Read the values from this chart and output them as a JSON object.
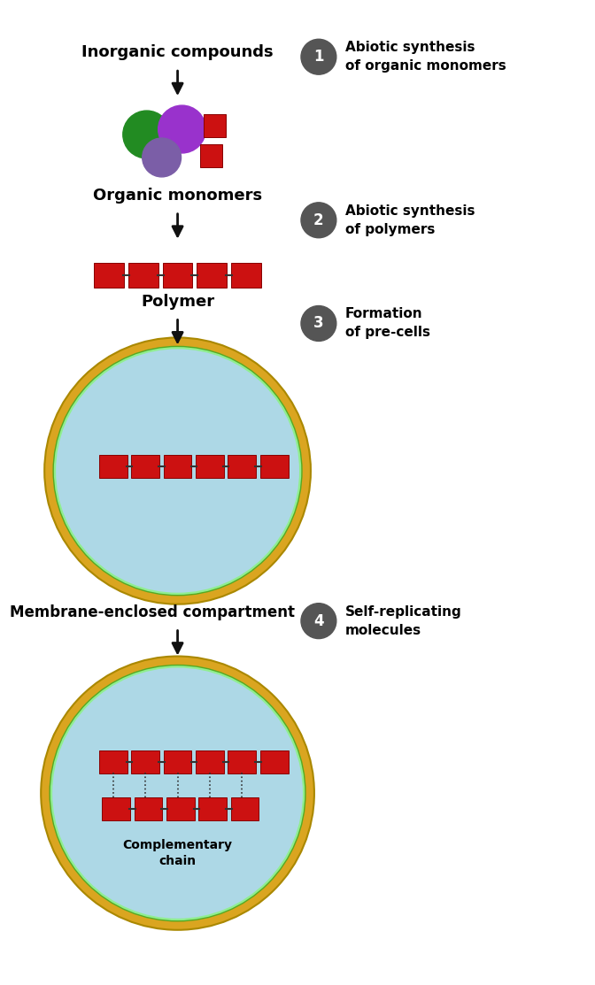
{
  "bg_color": "#ffffff",
  "text_color": "#000000",
  "step1_label": "Inorganic compounds",
  "step1_sub": "Organic monomers",
  "step2_label": "Polymer",
  "step3_label": "Membrane-enclosed compartment",
  "desc1": "Abiotic synthesis\nof organic monomers",
  "desc2": "Abiotic synthesis\nof polymers",
  "desc3": "Formation\nof pre-cells",
  "desc4": "Self-replicating\nmolecules",
  "comp_label": "Complementary\nchain",
  "badge_color": "#555555",
  "badge_text_color": "#ffffff",
  "cell_fill": "#add8e6",
  "cell_border_outer": "#daa520",
  "cell_border_green": "#90ee90",
  "arrow_color": "#111111",
  "red_box": "#cc1111",
  "red_box_edge": "#880000",
  "green_mol": "#228b22",
  "purple_mol": "#9932cc",
  "purple_mol2": "#7b5ea7"
}
